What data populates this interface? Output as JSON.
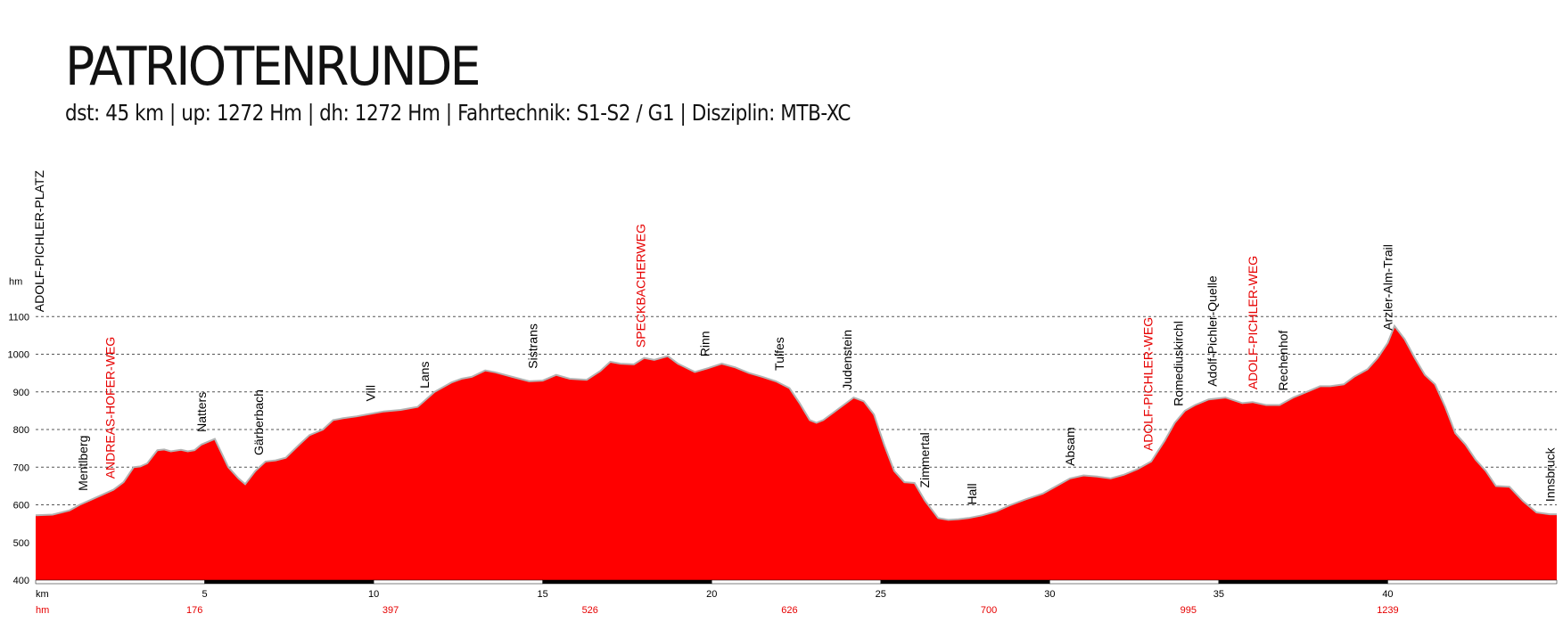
{
  "title": "PATRIOTENRUNDE",
  "subtitle": "dst: 45 km | up: 1272 Hm | dh: 1272 Hm | Fahrtechnik: S1-S2 / G1 | Disziplin: MTB-XC",
  "colors": {
    "fill": "#ff0000",
    "line": "#b3b3b3",
    "accent_text": "#e60000",
    "text": "#000000",
    "grid": "#555555"
  },
  "chart_data": {
    "type": "area",
    "xlabel": "km",
    "ylabel": "hm",
    "xlim": [
      0,
      45
    ],
    "ylim": [
      400,
      1200
    ],
    "y_ticks": [
      400,
      500,
      600,
      700,
      800,
      900,
      1000,
      1100
    ],
    "x_ticks": [
      5,
      10,
      15,
      20,
      25,
      30,
      35,
      40
    ],
    "grid": "horizontal dashed",
    "cumulative_ascent": {
      "label": "hm",
      "entries": [
        {
          "km": 4.7,
          "value": "176"
        },
        {
          "km": 10.5,
          "value": "397"
        },
        {
          "km": 16.4,
          "value": "526"
        },
        {
          "km": 22.3,
          "value": "626"
        },
        {
          "km": 28.2,
          "value": "700"
        },
        {
          "km": 34.1,
          "value": "995"
        },
        {
          "km": 40.0,
          "value": "1239"
        }
      ]
    },
    "x": [
      0,
      0.5,
      1,
      1.3,
      1.6,
      2,
      2.3,
      2.6,
      2.9,
      3.1,
      3.3,
      3.6,
      3.8,
      4,
      4.3,
      4.5,
      4.7,
      4.9,
      5.3,
      5.7,
      6,
      6.2,
      6.5,
      6.8,
      7.1,
      7.4,
      7.8,
      8.1,
      8.5,
      8.8,
      9.1,
      9.5,
      9.8,
      10.3,
      10.8,
      11.3,
      11.8,
      12.3,
      12.6,
      12.9,
      13.3,
      13.6,
      14.1,
      14.6,
      15,
      15.4,
      15.8,
      16.3,
      16.7,
      17,
      17.3,
      17.7,
      18,
      18.3,
      18.7,
      19,
      19.5,
      19.9,
      20.3,
      20.7,
      21.1,
      21.5,
      21.9,
      22.3,
      22.6,
      22.9,
      23.1,
      23.3,
      23.6,
      23.9,
      24.2,
      24.5,
      24.8,
      25.1,
      25.4,
      25.7,
      26,
      26.3,
      26.7,
      27,
      27.3,
      27.6,
      28,
      28.4,
      28.8,
      29.3,
      29.8,
      30.2,
      30.6,
      31,
      31.4,
      31.8,
      32.2,
      32.6,
      33,
      33.4,
      33.7,
      34,
      34.3,
      34.7,
      35.2,
      35.7,
      36,
      36.4,
      36.8,
      37.2,
      37.6,
      38,
      38.3,
      38.7,
      39,
      39.4,
      39.7,
      40,
      40.2,
      40.5,
      40.8,
      41.1,
      41.4,
      41.7,
      42,
      42.3,
      42.6,
      42.9,
      43.2,
      43.6,
      44,
      44.4,
      44.8,
      45
    ],
    "y": [
      572,
      574,
      585,
      600,
      612,
      628,
      640,
      660,
      700,
      702,
      710,
      745,
      747,
      742,
      746,
      742,
      745,
      760,
      775,
      700,
      670,
      655,
      690,
      715,
      718,
      725,
      760,
      785,
      800,
      825,
      830,
      835,
      840,
      848,
      852,
      860,
      900,
      925,
      935,
      940,
      957,
      952,
      940,
      928,
      930,
      945,
      935,
      932,
      955,
      980,
      975,
      973,
      990,
      985,
      995,
      975,
      953,
      963,
      975,
      965,
      950,
      940,
      928,
      910,
      870,
      825,
      818,
      825,
      845,
      865,
      885,
      875,
      840,
      760,
      690,
      660,
      658,
      612,
      565,
      560,
      562,
      565,
      572,
      582,
      598,
      615,
      630,
      650,
      670,
      678,
      675,
      670,
      680,
      695,
      715,
      770,
      818,
      850,
      865,
      880,
      885,
      870,
      873,
      865,
      865,
      885,
      900,
      915,
      915,
      920,
      940,
      960,
      990,
      1030,
      1075,
      1040,
      990,
      945,
      920,
      860,
      790,
      760,
      720,
      690,
      650,
      648,
      610,
      580,
      575,
      575
    ],
    "waypoints": [
      {
        "km": 0.1,
        "label": "ADOLF-PICHLER-PLATZ",
        "highlight": false
      },
      {
        "km": 1.4,
        "label": "Mentlberg",
        "highlight": false
      },
      {
        "km": 2.2,
        "label": "ANDREAS-HOFER-WEG",
        "highlight": true
      },
      {
        "km": 4.9,
        "label": "Natters",
        "highlight": false
      },
      {
        "km": 6.6,
        "label": "Gärberbach",
        "highlight": false
      },
      {
        "km": 9.9,
        "label": "Vill",
        "highlight": false
      },
      {
        "km": 11.5,
        "label": "Lans",
        "highlight": false
      },
      {
        "km": 14.7,
        "label": "Sistrans",
        "highlight": false
      },
      {
        "km": 17.9,
        "label": "SPECKBACHERWEG",
        "highlight": true
      },
      {
        "km": 19.8,
        "label": "Rinn",
        "highlight": false
      },
      {
        "km": 22.0,
        "label": "Tulfes",
        "highlight": false
      },
      {
        "km": 24.0,
        "label": "Judenstein",
        "highlight": false
      },
      {
        "km": 26.3,
        "label": "Zimmertal",
        "highlight": false
      },
      {
        "km": 27.7,
        "label": "Hall",
        "highlight": false
      },
      {
        "km": 30.6,
        "label": "Absam",
        "highlight": false
      },
      {
        "km": 32.9,
        "label": "ADOLF-PICHLER-WEG",
        "highlight": true
      },
      {
        "km": 33.8,
        "label": "Romediuskirchl",
        "highlight": false
      },
      {
        "km": 34.8,
        "label": "Adolf-Pichler-Quelle",
        "highlight": false
      },
      {
        "km": 36.0,
        "label": "ADOLF-PICHLER-WEG",
        "highlight": true
      },
      {
        "km": 36.9,
        "label": "Rechenhof",
        "highlight": false
      },
      {
        "km": 40.0,
        "label": "Arzler-Alm-Trail",
        "highlight": false
      },
      {
        "km": 44.8,
        "label": "Innsbruck",
        "highlight": false
      }
    ]
  }
}
